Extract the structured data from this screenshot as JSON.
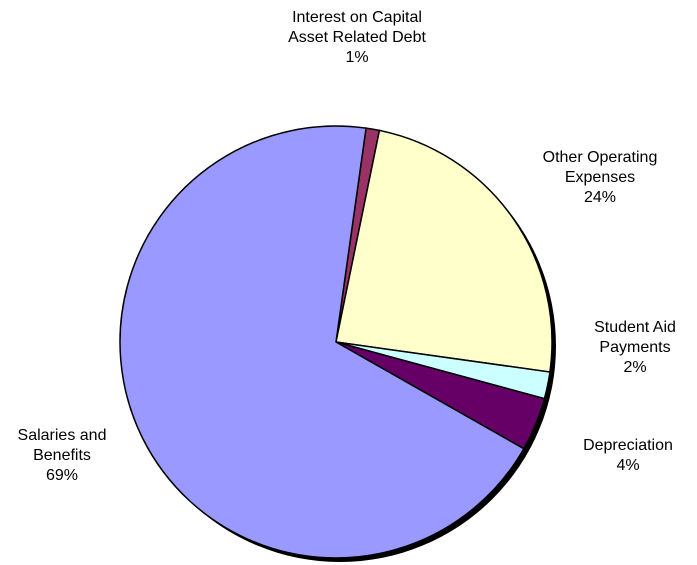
{
  "chart_data": {
    "type": "pie",
    "categories": [
      "Interest on Capital Asset Related Debt",
      "Other Operating Expenses",
      "Student Aid Payments",
      "Depreciation",
      "Salaries and Benefits"
    ],
    "values": [
      1,
      24,
      2,
      4,
      69
    ],
    "value_labels": [
      "1%",
      "24%",
      "2%",
      "4%",
      "69%"
    ],
    "colors": [
      "#993366",
      "#ffffcc",
      "#ccffff",
      "#660066",
      "#9999ff"
    ]
  }
}
